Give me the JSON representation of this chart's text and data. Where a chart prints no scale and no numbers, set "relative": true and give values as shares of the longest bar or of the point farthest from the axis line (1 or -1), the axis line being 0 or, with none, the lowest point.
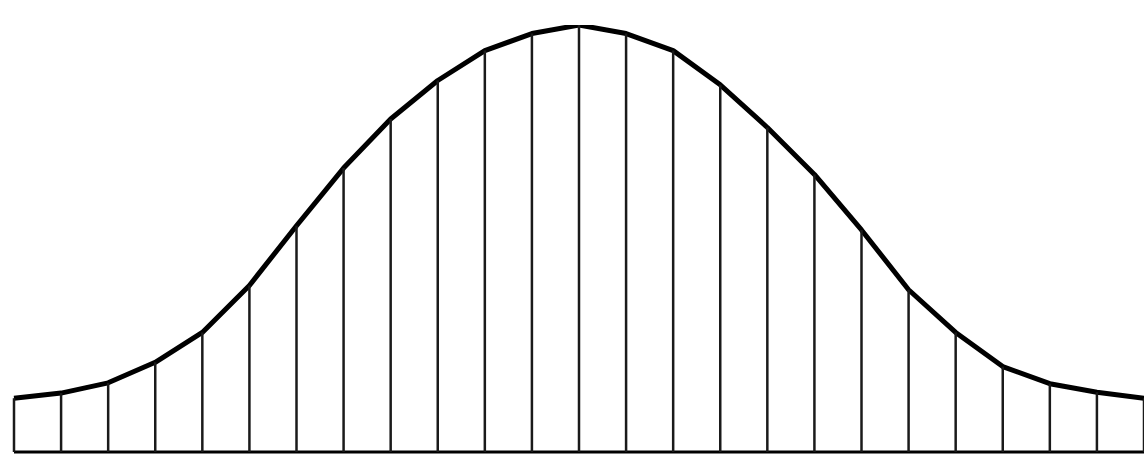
{
  "chart_data": {
    "type": "line",
    "relative": true,
    "tick_labels": false,
    "grid": "x",
    "categories": [
      null,
      null,
      null,
      null,
      null,
      null,
      null,
      null,
      null,
      null,
      null,
      null,
      null,
      null,
      null,
      null,
      null,
      null,
      null,
      null,
      null,
      null,
      null,
      null,
      null
    ],
    "series": [
      {
        "color": "#000000",
        "values": [
          0.126,
          0.138,
          0.162,
          0.21,
          0.28,
          0.39,
          0.53,
          0.665,
          0.78,
          0.87,
          0.94,
          0.98,
          1,
          0.98,
          0.94,
          0.86,
          0.76,
          0.65,
          0.52,
          0.38,
          0.28,
          0.2,
          0.16,
          0.14,
          0.126
        ]
      }
    ]
  }
}
